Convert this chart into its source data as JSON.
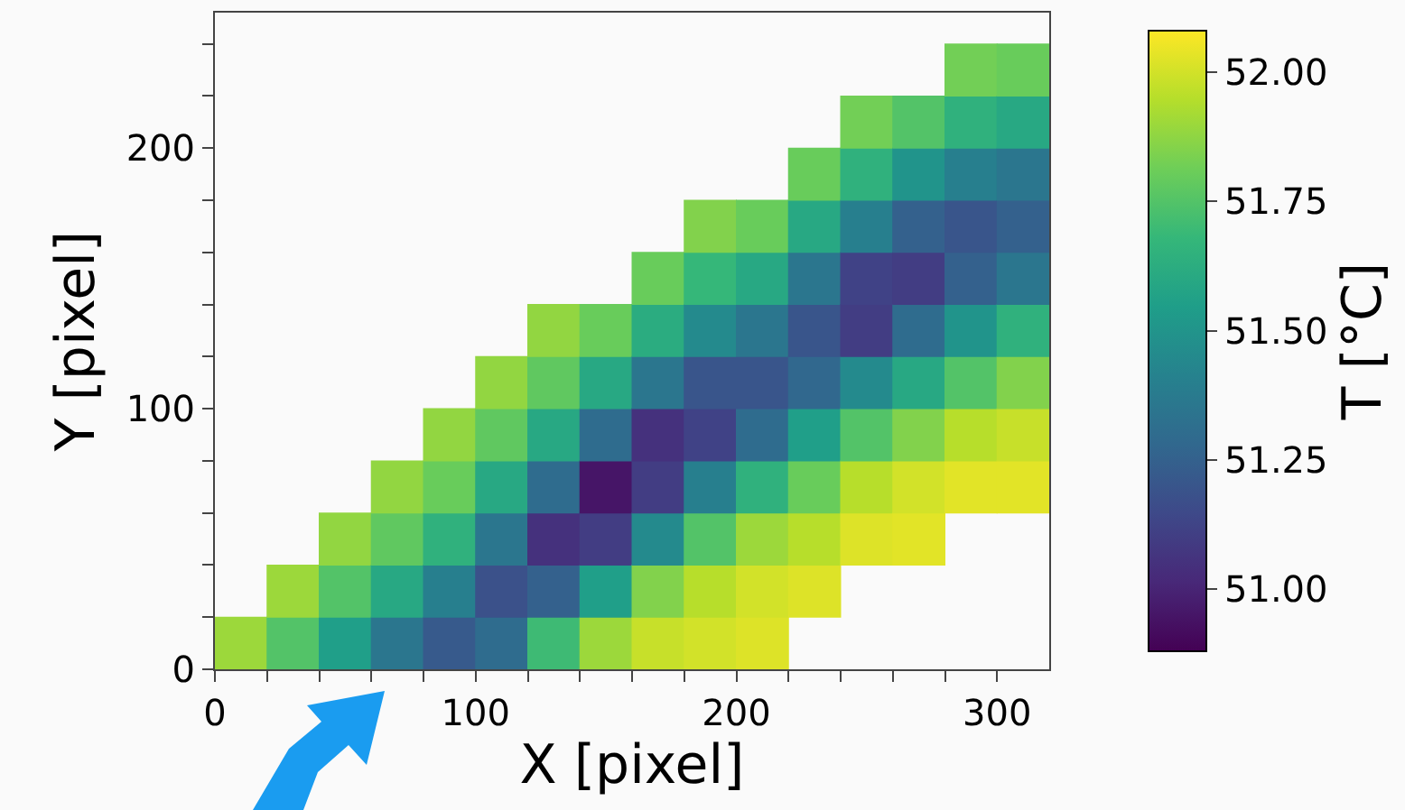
{
  "chart_data": {
    "type": "scatter",
    "xlabel": "X [pixel]",
    "ylabel": "Y [pixel]",
    "clabel": "T [°C]",
    "marker": "square",
    "xlim": [
      0,
      320
    ],
    "xticks": [
      0,
      {
        "value": 20,
        "label": null
      },
      {
        "value": 40,
        "label": null
      },
      {
        "value": 60,
        "label": null
      },
      {
        "value": 80,
        "label": null
      },
      100,
      {
        "value": 120,
        "label": null
      },
      {
        "value": 140,
        "label": null
      },
      {
        "value": 160,
        "label": null
      },
      {
        "value": 180,
        "label": null
      },
      200,
      {
        "value": 220,
        "label": null
      },
      {
        "value": 240,
        "label": null
      },
      {
        "value": 260,
        "label": null
      },
      {
        "value": 280,
        "label": null
      },
      300
    ],
    "ylim": [
      0,
      252
    ],
    "yticks": [
      0,
      {
        "value": 20,
        "label": null
      },
      {
        "value": 40,
        "label": null
      },
      {
        "value": 60,
        "label": null
      },
      {
        "value": 80,
        "label": null
      },
      100,
      {
        "value": 120,
        "label": null
      },
      {
        "value": 140,
        "label": null
      },
      {
        "value": 160,
        "label": null
      },
      {
        "value": 180,
        "label": null
      },
      200,
      {
        "value": 220,
        "label": null
      },
      {
        "value": 240,
        "label": null
      }
    ],
    "clim": [
      50.88,
      52.08
    ],
    "cticks": [
      {
        "value": 51.0,
        "label": "51.00"
      },
      {
        "value": 51.25,
        "label": "51.25"
      },
      {
        "value": 51.5,
        "label": "51.50"
      },
      {
        "value": 51.75,
        "label": "51.75"
      },
      {
        "value": 52.0,
        "label": "52.00"
      }
    ],
    "x": [
      10,
      30,
      30,
      50,
      50,
      50,
      70,
      70,
      70,
      70,
      90,
      90,
      90,
      90,
      90,
      110,
      110,
      110,
      110,
      110,
      110,
      130,
      130,
      130,
      130,
      130,
      130,
      130,
      150,
      150,
      150,
      150,
      150,
      150,
      150,
      170,
      170,
      170,
      170,
      170,
      170,
      170,
      170,
      190,
      190,
      190,
      190,
      190,
      190,
      190,
      190,
      190,
      210,
      210,
      210,
      210,
      210,
      210,
      210,
      210,
      210,
      230,
      230,
      230,
      230,
      230,
      230,
      230,
      230,
      230,
      250,
      250,
      250,
      250,
      250,
      250,
      250,
      250,
      250,
      270,
      270,
      270,
      270,
      270,
      270,
      270,
      270,
      270,
      290,
      290,
      290,
      290,
      290,
      290,
      290,
      290,
      290,
      310,
      310,
      310,
      310,
      310,
      310,
      310,
      310,
      310
    ],
    "values": [
      10,
      10,
      30,
      10,
      30,
      50,
      10,
      30,
      50,
      70,
      10,
      30,
      50,
      70,
      90,
      10,
      30,
      50,
      70,
      90,
      110,
      10,
      30,
      50,
      70,
      90,
      110,
      130,
      10,
      30,
      50,
      70,
      90,
      110,
      130,
      10,
      30,
      50,
      70,
      90,
      110,
      130,
      150,
      10,
      30,
      50,
      70,
      90,
      110,
      130,
      150,
      170,
      10,
      30,
      50,
      70,
      90,
      110,
      130,
      150,
      170,
      30,
      50,
      70,
      90,
      110,
      130,
      150,
      170,
      190,
      50,
      70,
      90,
      110,
      130,
      150,
      170,
      190,
      210,
      50,
      70,
      90,
      110,
      130,
      150,
      170,
      190,
      210,
      70,
      90,
      110,
      130,
      150,
      170,
      190,
      210,
      230,
      70,
      90,
      110,
      130,
      150,
      170,
      190,
      210,
      230
    ],
    "cvalues": [
      51.9,
      51.75,
      51.9,
      51.55,
      51.75,
      51.88,
      51.35,
      51.6,
      51.78,
      51.88,
      51.22,
      51.4,
      51.65,
      51.8,
      51.88,
      51.3,
      51.18,
      51.35,
      51.6,
      51.78,
      51.88,
      51.7,
      51.25,
      51.05,
      51.3,
      51.6,
      51.78,
      51.88,
      51.9,
      51.55,
      51.1,
      50.95,
      51.3,
      51.6,
      51.8,
      51.98,
      51.85,
      51.45,
      51.1,
      51.05,
      51.35,
      51.62,
      51.8,
      52.0,
      51.95,
      51.75,
      51.4,
      51.12,
      51.2,
      51.45,
      51.68,
      51.85,
      52.02,
      52.0,
      51.9,
      51.65,
      51.3,
      51.2,
      51.35,
      51.6,
      51.8,
      52.02,
      51.95,
      51.8,
      51.55,
      51.28,
      51.2,
      51.35,
      51.6,
      51.8,
      52.02,
      51.95,
      51.75,
      51.45,
      51.1,
      51.12,
      51.4,
      51.65,
      51.82,
      52.03,
      52.0,
      51.85,
      51.6,
      51.3,
      51.1,
      51.25,
      51.5,
      51.75,
      52.03,
      51.95,
      51.75,
      51.5,
      51.25,
      51.2,
      51.4,
      51.65,
      51.82,
      52.03,
      51.98,
      51.85,
      51.65,
      51.35,
      51.25,
      51.35,
      51.6,
      51.8
    ]
  }
}
